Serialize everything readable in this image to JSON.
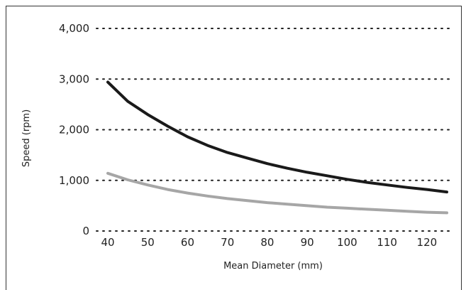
{
  "chart_data": {
    "type": "line",
    "title": "",
    "xlabel": "Mean Diameter (mm)",
    "ylabel": "Speed (rpm)",
    "xlim": [
      40,
      125
    ],
    "ylim": [
      0,
      4000
    ],
    "x_ticks": [
      40,
      50,
      60,
      70,
      80,
      90,
      100,
      110,
      120
    ],
    "y_ticks": [
      {
        "value": 0,
        "label": "0"
      },
      {
        "value": 1000,
        "label": "1,000"
      },
      {
        "value": 2000,
        "label": "2,000"
      },
      {
        "value": 3000,
        "label": "3,000"
      },
      {
        "value": 4000,
        "label": "4,000"
      }
    ],
    "grid": "horizontal dotted",
    "legend": "none",
    "series": [
      {
        "color": "#1a1a1a",
        "x": [
          40,
          45,
          50,
          55,
          60,
          65,
          70,
          75,
          80,
          85,
          90,
          95,
          100,
          105,
          110,
          115,
          120,
          125
        ],
        "values": [
          2940,
          2560,
          2300,
          2070,
          1860,
          1690,
          1550,
          1440,
          1330,
          1240,
          1160,
          1090,
          1020,
          960,
          910,
          860,
          820,
          770
        ]
      },
      {
        "color": "#a6a6a6",
        "x": [
          40,
          45,
          50,
          55,
          60,
          65,
          70,
          75,
          80,
          85,
          90,
          95,
          100,
          105,
          110,
          115,
          120,
          125
        ],
        "values": [
          1140,
          1010,
          910,
          820,
          750,
          690,
          640,
          600,
          560,
          530,
          500,
          470,
          450,
          430,
          410,
          390,
          370,
          360
        ]
      }
    ]
  }
}
